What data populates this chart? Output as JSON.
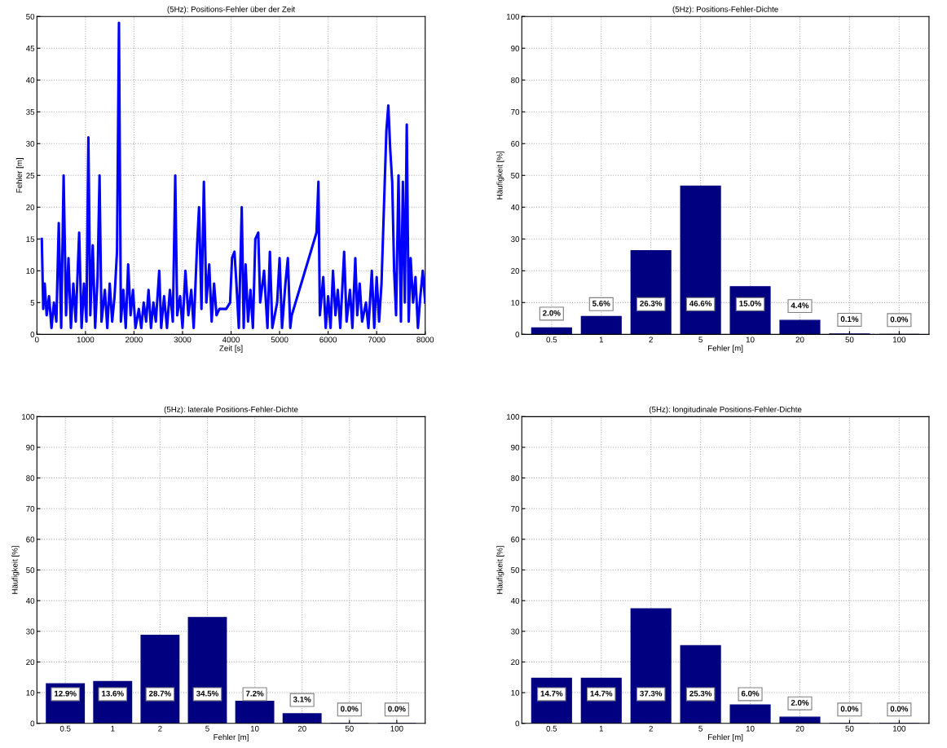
{
  "chart_data": [
    {
      "type": "line",
      "title": "(5Hz): Positions-Fehler über der Zeit",
      "xlabel": "Zeit [s]",
      "ylabel": "Fehler [m]",
      "xlim": [
        0,
        8000
      ],
      "xticks": [
        0,
        1000,
        2000,
        3000,
        4000,
        5000,
        6000,
        7000,
        8000
      ],
      "ylim": [
        0,
        50
      ],
      "yticks": [
        0,
        5,
        10,
        15,
        20,
        25,
        30,
        35,
        40,
        45,
        50
      ],
      "grid": true,
      "line_style": "solid",
      "marker": "none",
      "series": [
        {
          "color": "#0000ff",
          "x": [
            100,
            130,
            160,
            200,
            250,
            300,
            350,
            400,
            450,
            500,
            550,
            600,
            650,
            700,
            750,
            800,
            870,
            920,
            970,
            1020,
            1060,
            1100,
            1150,
            1200,
            1250,
            1290,
            1330,
            1400,
            1450,
            1500,
            1550,
            1600,
            1650,
            1690,
            1730,
            1780,
            1830,
            1880,
            1930,
            1980,
            2030,
            2100,
            2150,
            2200,
            2250,
            2300,
            2350,
            2400,
            2450,
            2520,
            2560,
            2620,
            2680,
            2740,
            2800,
            2850,
            2890,
            2950,
            3000,
            3060,
            3120,
            3180,
            3230,
            3300,
            3340,
            3390,
            3440,
            3490,
            3550,
            3600,
            3650,
            3700,
            3760,
            3820,
            3900,
            3980,
            4020,
            4070,
            4110,
            4160,
            4220,
            4260,
            4300,
            4350,
            4400,
            4450,
            4500,
            4560,
            4600,
            4680,
            4750,
            4800,
            4850,
            4950,
            5000,
            5050,
            5120,
            5170,
            5220,
            5250,
            5760,
            5800,
            5830,
            5900,
            5950,
            6000,
            6050,
            6100,
            6150,
            6200,
            6250,
            6330,
            6380,
            6450,
            6500,
            6560,
            6600,
            6650,
            6700,
            6780,
            6830,
            6900,
            6950,
            7000,
            7050,
            7100,
            7150,
            7200,
            7240,
            7280,
            7320,
            7360,
            7400,
            7450,
            7500,
            7540,
            7580,
            7620,
            7660,
            7700,
            7750,
            7800,
            7850,
            7900,
            7950,
            8000
          ],
          "values": [
            15,
            4,
            8,
            3,
            6,
            1,
            5,
            2,
            17.5,
            1,
            25,
            3,
            12,
            1,
            8,
            2,
            16,
            1,
            8,
            2,
            31,
            3,
            14,
            1,
            9,
            25,
            2,
            7,
            1,
            8,
            2,
            6,
            13,
            49,
            2,
            7,
            1,
            11,
            3,
            7,
            1,
            4,
            1,
            5,
            2,
            7,
            1,
            5,
            2,
            10,
            1,
            6,
            1,
            7,
            2,
            25,
            3,
            6,
            1,
            10,
            3,
            7,
            1,
            14,
            20,
            4,
            24,
            5,
            11,
            2,
            8,
            3,
            4,
            4,
            4,
            5,
            12,
            13,
            8,
            1,
            20,
            1,
            11,
            2,
            7,
            1,
            15,
            16,
            5,
            10,
            1,
            13,
            1,
            5,
            12,
            1,
            8,
            12,
            1,
            3,
            16,
            24,
            3,
            9,
            1,
            6,
            1,
            10,
            3,
            7,
            1,
            13,
            2,
            7,
            1,
            12,
            3,
            8,
            2,
            5,
            1,
            10,
            1,
            9,
            2,
            8,
            20,
            32,
            36,
            29,
            24,
            10,
            3,
            25,
            2,
            24,
            5,
            33,
            2,
            12,
            5,
            9,
            1,
            6,
            10,
            5
          ]
        }
      ]
    },
    {
      "type": "bar",
      "title": "(5Hz): Positions-Fehler-Dichte",
      "xlabel": "Fehler [m]",
      "ylabel": "Häufigkeit [%]",
      "categories": [
        "0.5",
        "1",
        "2",
        "5",
        "10",
        "20",
        "50",
        "100"
      ],
      "ylim": [
        0,
        100
      ],
      "yticks": [
        0,
        10,
        20,
        30,
        40,
        50,
        60,
        70,
        80,
        90,
        100
      ],
      "grid": true,
      "color": "#000080",
      "values": [
        2.0,
        5.6,
        26.3,
        46.6,
        15.0,
        4.4,
        0.1,
        0.0
      ],
      "value_labels": [
        "2.0%",
        "5.6%",
        "26.3%",
        "46.6%",
        "15.0%",
        "4.4%",
        "0.1%",
        "0.0%"
      ]
    },
    {
      "type": "bar",
      "title": "(5Hz): laterale Positions-Fehler-Dichte",
      "xlabel": "Fehler [m]",
      "ylabel": "Häufigkeit [%]",
      "categories": [
        "0.5",
        "1",
        "2",
        "5",
        "10",
        "20",
        "50",
        "100"
      ],
      "ylim": [
        0,
        100
      ],
      "yticks": [
        0,
        10,
        20,
        30,
        40,
        50,
        60,
        70,
        80,
        90,
        100
      ],
      "grid": true,
      "color": "#000080",
      "values": [
        12.9,
        13.6,
        28.7,
        34.5,
        7.2,
        3.1,
        0.0,
        0.0
      ],
      "value_labels": [
        "12.9%",
        "13.6%",
        "28.7%",
        "34.5%",
        "7.2%",
        "3.1%",
        "0.0%",
        "0.0%"
      ]
    },
    {
      "type": "bar",
      "title": "(5Hz): longitudinale Positions-Fehler-Dichte",
      "xlabel": "Fehler [m]",
      "ylabel": "Häufigkeit [%]",
      "categories": [
        "0.5",
        "1",
        "2",
        "5",
        "10",
        "20",
        "50",
        "100"
      ],
      "ylim": [
        0,
        100
      ],
      "yticks": [
        0,
        10,
        20,
        30,
        40,
        50,
        60,
        70,
        80,
        90,
        100
      ],
      "grid": true,
      "color": "#000080",
      "values": [
        14.7,
        14.7,
        37.3,
        25.3,
        6.0,
        2.0,
        0.0,
        0.0
      ],
      "value_labels": [
        "14.7%",
        "14.7%",
        "37.3%",
        "25.3%",
        "6.0%",
        "2.0%",
        "0.0%",
        "0.0%"
      ]
    }
  ]
}
